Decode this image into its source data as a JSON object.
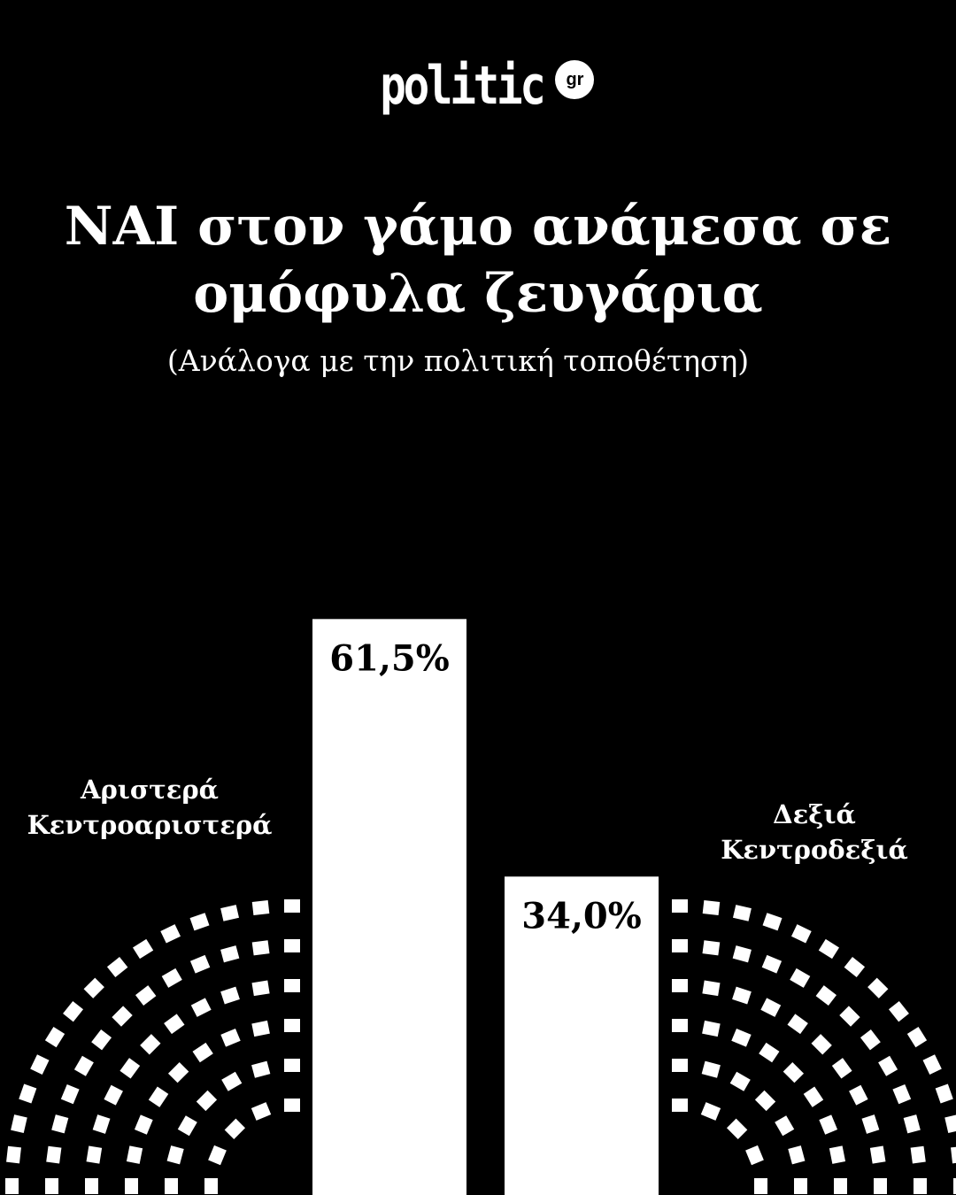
{
  "logo": {
    "text": "politic",
    "badge": "gr"
  },
  "chart_data": {
    "type": "bar",
    "title": "ΝΑΙ στον γάμο ανάμεσα σε ομόφυλα ζευγάρια",
    "subtitle": "(Ανάλογα με την πολιτική τοποθέτηση)",
    "categories": [
      "Αριστερά Κεντροαριστερά",
      "Δεξιά Κεντροδεξιά"
    ],
    "category_lines": [
      [
        "Αριστερά",
        "Κεντροαριστερά"
      ],
      [
        "Δεξιά",
        "Κεντροδεξιά"
      ]
    ],
    "values": [
      61.5,
      34.0
    ],
    "value_labels": [
      "61,5%",
      "34,0%"
    ],
    "unit": "%",
    "bar_color": "#FFFFFF",
    "background": "#000000",
    "grid": false
  }
}
